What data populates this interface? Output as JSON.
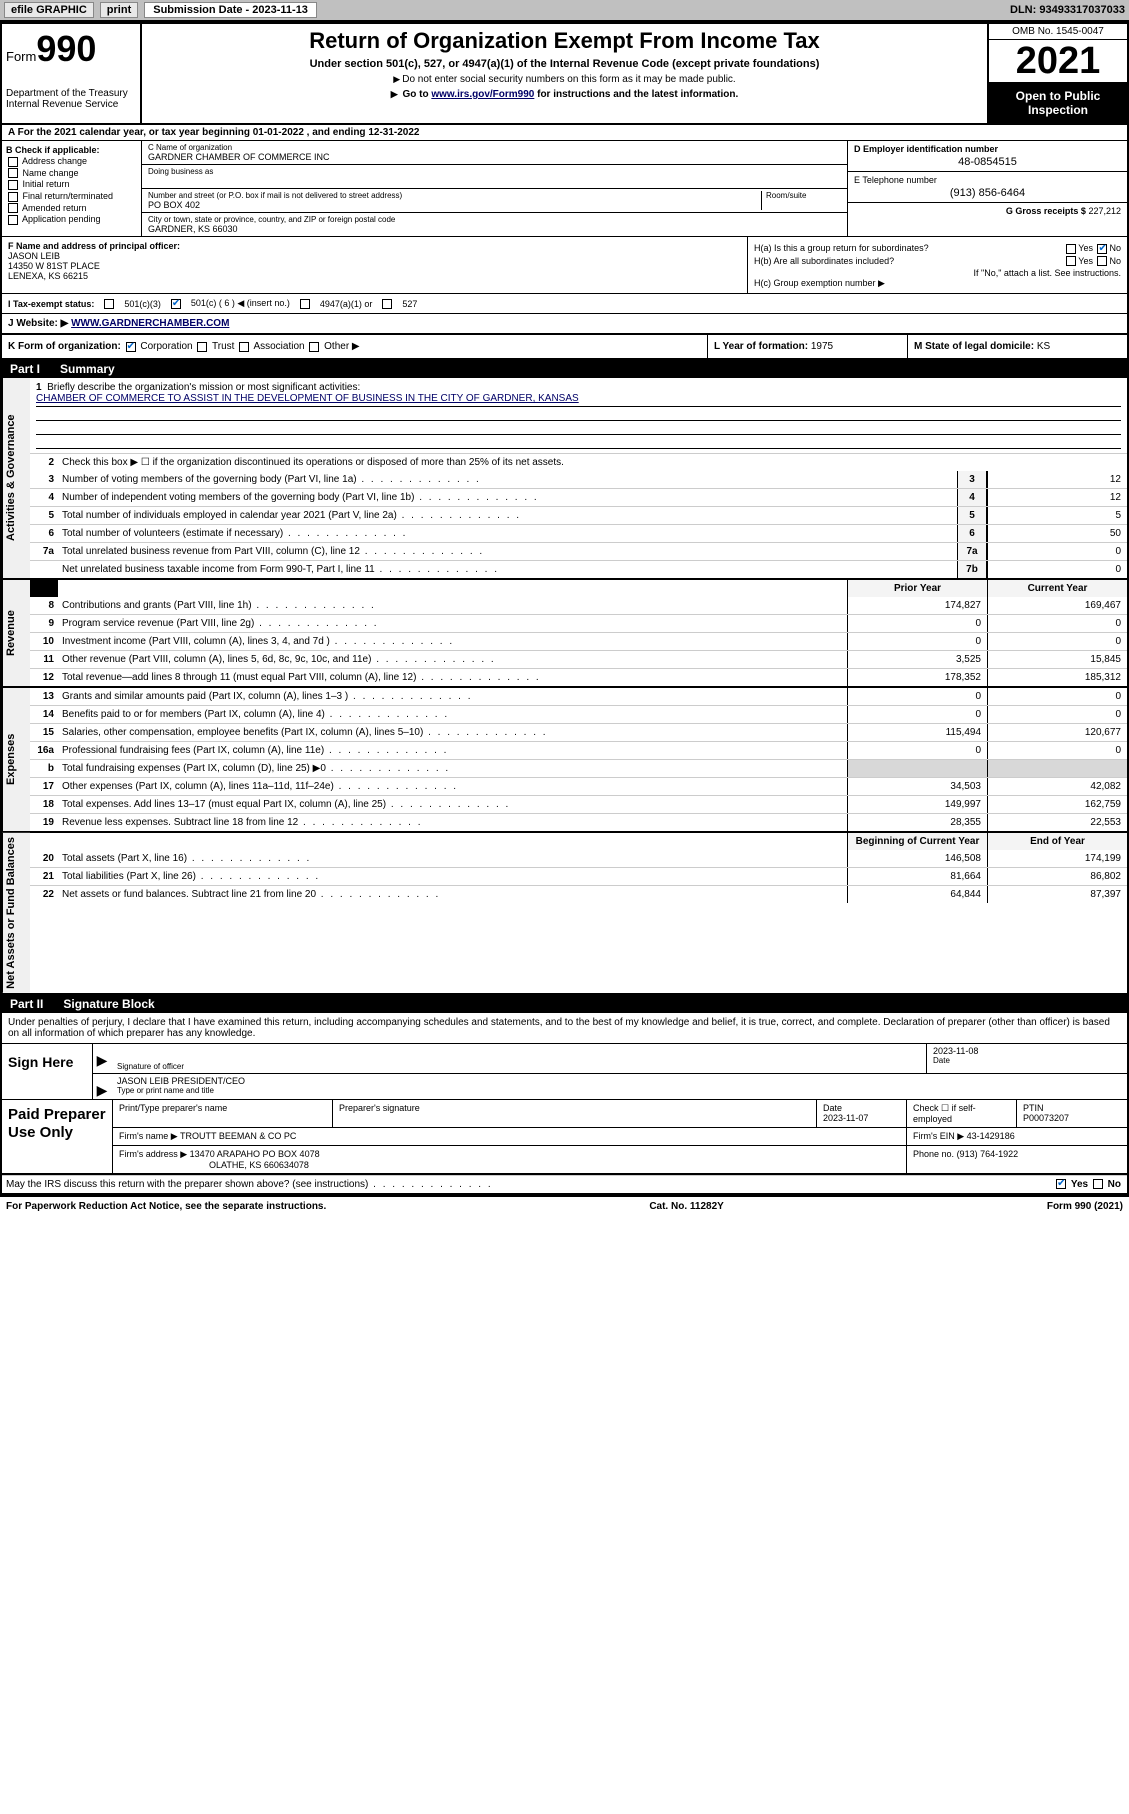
{
  "topbar": {
    "efile": "efile GRAPHIC",
    "print": "print",
    "submission_label": "Submission Date - 2023-11-13",
    "dln": "DLN: 93493317037033"
  },
  "header": {
    "form_word": "Form",
    "form_num": "990",
    "title": "Return of Organization Exempt From Income Tax",
    "sub1": "Under section 501(c), 527, or 4947(a)(1) of the Internal Revenue Code (except private foundations)",
    "sub2": "Do not enter social security numbers on this form as it may be made public.",
    "sub3_pre": "Go to ",
    "sub3_link": "www.irs.gov/Form990",
    "sub3_post": " for instructions and the latest information.",
    "dept": "Department of the Treasury\nInternal Revenue Service",
    "omb": "OMB No. 1545-0047",
    "year": "2021",
    "inspect": "Open to Public Inspection"
  },
  "rowA": "A For the 2021 calendar year, or tax year beginning 01-01-2022 , and ending 12-31-2022",
  "colB": {
    "label": "B Check if applicable:",
    "opts": [
      "Address change",
      "Name change",
      "Initial return",
      "Final return/terminated",
      "Amended return",
      "Application pending"
    ]
  },
  "colC": {
    "name_lbl": "C Name of organization",
    "name": "GARDNER CHAMBER OF COMMERCE INC",
    "dba_lbl": "Doing business as",
    "addr_lbl": "Number and street (or P.O. box if mail is not delivered to street address)",
    "room_lbl": "Room/suite",
    "addr": "PO BOX 402",
    "city_lbl": "City or town, state or province, country, and ZIP or foreign postal code",
    "city": "GARDNER, KS  66030"
  },
  "colD": {
    "ein_lbl": "D Employer identification number",
    "ein": "48-0854515",
    "tel_lbl": "E Telephone number",
    "tel": "(913) 856-6464",
    "gross_lbl": "G Gross receipts $",
    "gross": "227,212"
  },
  "rowF": {
    "lbl": "F Name and address of principal officer:",
    "name": "JASON LEIB",
    "addr1": "14350 W 81ST PLACE",
    "addr2": "LENEXA, KS  66215"
  },
  "rowH": {
    "ha": "H(a)  Is this a group return for subordinates?",
    "hb": "H(b)  Are all subordinates included?",
    "hb_note": "If \"No,\" attach a list. See instructions.",
    "hc": "H(c)  Group exemption number ▶"
  },
  "rowI": {
    "lbl": "I  Tax-exempt status:",
    "o1": "501(c)(3)",
    "o2": "501(c) ( 6 ) ◀ (insert no.)",
    "o3": "4947(a)(1) or",
    "o4": "527"
  },
  "rowJ": {
    "lbl": "J  Website: ▶",
    "url": "WWW.GARDNERCHAMBER.COM"
  },
  "rowK": {
    "k1": "K Form of organization:",
    "corp": "Corporation",
    "trust": "Trust",
    "assoc": "Association",
    "other": "Other ▶",
    "k2_lbl": "L Year of formation:",
    "k2_val": "1975",
    "k3_lbl": "M State of legal domicile:",
    "k3_val": "KS"
  },
  "part1": {
    "num": "Part I",
    "title": "Summary",
    "tab1": "Activities & Governance",
    "tab2": "Revenue",
    "tab3": "Expenses",
    "tab4": "Net Assets or Fund Balances",
    "l1": "Briefly describe the organization's mission or most significant activities:",
    "mission": "CHAMBER OF COMMERCE TO ASSIST IN THE DEVELOPMENT OF BUSINESS IN THE CITY OF GARDNER, KANSAS",
    "l2": "Check this box ▶ ☐  if the organization discontinued its operations or disposed of more than 25% of its net assets.",
    "rows_gov": [
      {
        "n": "3",
        "t": "Number of voting members of the governing body (Part VI, line 1a)",
        "bx": "3",
        "v": "12"
      },
      {
        "n": "4",
        "t": "Number of independent voting members of the governing body (Part VI, line 1b)",
        "bx": "4",
        "v": "12"
      },
      {
        "n": "5",
        "t": "Total number of individuals employed in calendar year 2021 (Part V, line 2a)",
        "bx": "5",
        "v": "5"
      },
      {
        "n": "6",
        "t": "Total number of volunteers (estimate if necessary)",
        "bx": "6",
        "v": "50"
      },
      {
        "n": "7a",
        "t": "Total unrelated business revenue from Part VIII, column (C), line 12",
        "bx": "7a",
        "v": "0"
      },
      {
        "n": "",
        "t": "Net unrelated business taxable income from Form 990-T, Part I, line 11",
        "bx": "7b",
        "v": "0"
      }
    ],
    "hdr_prior": "Prior Year",
    "hdr_curr": "Current Year",
    "rows_rev": [
      {
        "n": "8",
        "t": "Contributions and grants (Part VIII, line 1h)",
        "p": "174,827",
        "c": "169,467"
      },
      {
        "n": "9",
        "t": "Program service revenue (Part VIII, line 2g)",
        "p": "0",
        "c": "0"
      },
      {
        "n": "10",
        "t": "Investment income (Part VIII, column (A), lines 3, 4, and 7d )",
        "p": "0",
        "c": "0"
      },
      {
        "n": "11",
        "t": "Other revenue (Part VIII, column (A), lines 5, 6d, 8c, 9c, 10c, and 11e)",
        "p": "3,525",
        "c": "15,845"
      },
      {
        "n": "12",
        "t": "Total revenue—add lines 8 through 11 (must equal Part VIII, column (A), line 12)",
        "p": "178,352",
        "c": "185,312"
      }
    ],
    "rows_exp": [
      {
        "n": "13",
        "t": "Grants and similar amounts paid (Part IX, column (A), lines 1–3 )",
        "p": "0",
        "c": "0"
      },
      {
        "n": "14",
        "t": "Benefits paid to or for members (Part IX, column (A), line 4)",
        "p": "0",
        "c": "0"
      },
      {
        "n": "15",
        "t": "Salaries, other compensation, employee benefits (Part IX, column (A), lines 5–10)",
        "p": "115,494",
        "c": "120,677"
      },
      {
        "n": "16a",
        "t": "Professional fundraising fees (Part IX, column (A), line 11e)",
        "p": "0",
        "c": "0"
      },
      {
        "n": "b",
        "t": "Total fundraising expenses (Part IX, column (D), line 25) ▶0",
        "p": "",
        "c": "",
        "shade": true
      },
      {
        "n": "17",
        "t": "Other expenses (Part IX, column (A), lines 11a–11d, 11f–24e)",
        "p": "34,503",
        "c": "42,082"
      },
      {
        "n": "18",
        "t": "Total expenses. Add lines 13–17 (must equal Part IX, column (A), line 25)",
        "p": "149,997",
        "c": "162,759"
      },
      {
        "n": "19",
        "t": "Revenue less expenses. Subtract line 18 from line 12",
        "p": "28,355",
        "c": "22,553"
      }
    ],
    "hdr_beg": "Beginning of Current Year",
    "hdr_end": "End of Year",
    "rows_net": [
      {
        "n": "20",
        "t": "Total assets (Part X, line 16)",
        "p": "146,508",
        "c": "174,199"
      },
      {
        "n": "21",
        "t": "Total liabilities (Part X, line 26)",
        "p": "81,664",
        "c": "86,802"
      },
      {
        "n": "22",
        "t": "Net assets or fund balances. Subtract line 21 from line 20",
        "p": "64,844",
        "c": "87,397"
      }
    ]
  },
  "part2": {
    "num": "Part II",
    "title": "Signature Block",
    "intro": "Under penalties of perjury, I declare that I have examined this return, including accompanying schedules and statements, and to the best of my knowledge and belief, it is true, correct, and complete. Declaration of preparer (other than officer) is based on all information of which preparer has any knowledge.",
    "sign_here": "Sign Here",
    "sig_officer_lbl": "Signature of officer",
    "sig_date_lbl": "Date",
    "sig_date": "2023-11-08",
    "sig_name_title": "JASON LEIB  PRESIDENT/CEO",
    "sig_name_lbl": "Type or print name and title",
    "paid": "Paid Preparer Use Only",
    "prep_name_lbl": "Print/Type preparer's name",
    "prep_sig_lbl": "Preparer's signature",
    "prep_date_lbl": "Date",
    "prep_date": "2023-11-07",
    "prep_self_lbl": "Check ☐ if self-employed",
    "ptin_lbl": "PTIN",
    "ptin": "P00073207",
    "firm_name_lbl": "Firm's name    ▶",
    "firm_name": "TROUTT BEEMAN & CO PC",
    "firm_ein_lbl": "Firm's EIN ▶",
    "firm_ein": "43-1429186",
    "firm_addr_lbl": "Firm's address ▶",
    "firm_addr": "13470 ARAPAHO PO BOX 4078",
    "firm_city": "OLATHE, KS  660634078",
    "phone_lbl": "Phone no.",
    "phone": "(913) 764-1922",
    "discuss": "May the IRS discuss this return with the preparer shown above? (see instructions)",
    "yes": "Yes",
    "no": "No"
  },
  "footer": {
    "left": "For Paperwork Reduction Act Notice, see the separate instructions.",
    "mid": "Cat. No. 11282Y",
    "right": "Form 990 (2021)"
  }
}
